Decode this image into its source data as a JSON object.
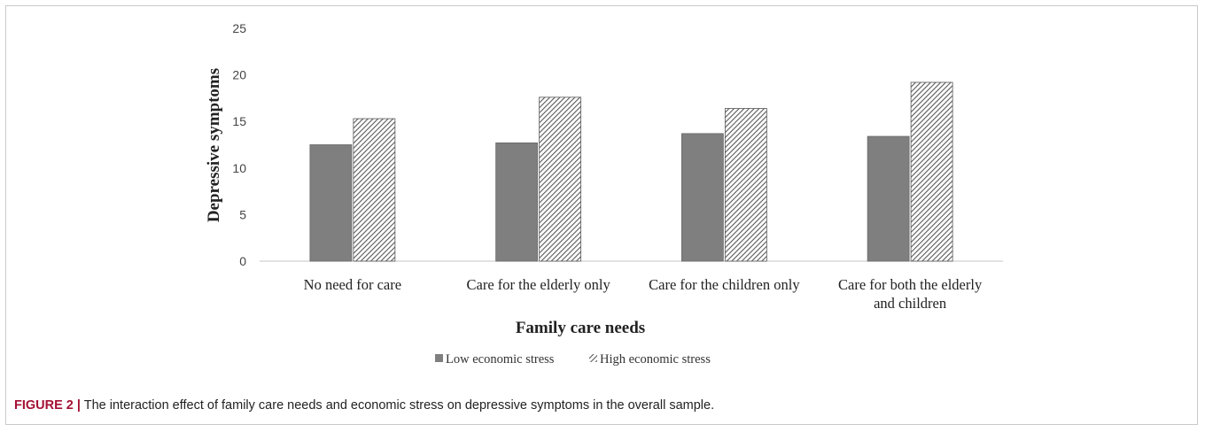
{
  "chart_data": {
    "type": "bar",
    "title": "",
    "xlabel": "Family care needs",
    "ylabel": "Depressive  symptoms",
    "ylim": [
      0,
      25
    ],
    "yticks": [
      0,
      5,
      10,
      15,
      20,
      25
    ],
    "grid": false,
    "legend_position": "bottom",
    "categories": [
      [
        "No need for care"
      ],
      [
        "Care for  the elderly only"
      ],
      [
        "Care for the children only"
      ],
      [
        "Care for both the elderly",
        "and children"
      ]
    ],
    "series": [
      {
        "name": "Low economic stress",
        "values": [
          12.5,
          12.7,
          13.7,
          13.4
        ],
        "color": "#7f7f7f",
        "pattern": "solid"
      },
      {
        "name": "High economic stress",
        "values": [
          15.3,
          17.6,
          16.4,
          19.2
        ],
        "color": "#595959",
        "pattern": "diagonal-hatch"
      }
    ]
  },
  "caption": {
    "label": "FIGURE 2 |",
    "text": " The interaction effect of family care needs and economic stress on depressive symptoms in the overall sample."
  }
}
